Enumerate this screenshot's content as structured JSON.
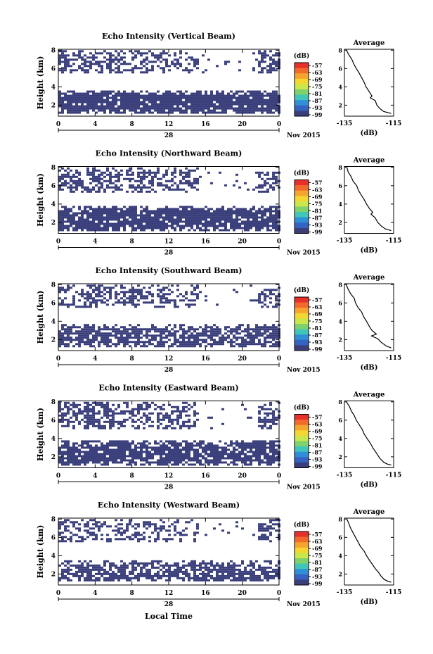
{
  "chart_data": [
    {
      "type": "heatmap",
      "title": "Echo Intensity (Vertical Beam)",
      "ylabel": "Height (km)",
      "x_ticks": [
        "0",
        "4",
        "8",
        "12",
        "16",
        "20",
        "0"
      ],
      "y_ticks": [
        "2",
        "4",
        "6",
        "8"
      ],
      "date_label": "28",
      "month_label": "Nov 2015",
      "xlim": [
        0,
        24
      ],
      "ylim": [
        0.8,
        8.1
      ],
      "colorbar": {
        "unit": "(dB)",
        "levels": [
          "-57",
          "-63",
          "-69",
          "-75",
          "-81",
          "-87",
          "-93",
          "-99"
        ]
      },
      "echo_layers": [
        {
          "from": 1.2,
          "to": 3.6,
          "density": 0.93
        },
        {
          "from": 5.5,
          "to": 8.0,
          "density": 0.55
        }
      ],
      "profile": {
        "title": "Average",
        "xlabel": "(dB)",
        "x_ticks": [
          "-135",
          "-115"
        ],
        "y_ticks": [
          "2",
          "4",
          "6",
          "8"
        ],
        "xlim": [
          -135,
          -115
        ],
        "ylim": [
          0.8,
          8.1
        ],
        "points": [
          [
            -134.2,
            8.0
          ],
          [
            -133.2,
            7.5
          ],
          [
            -132.0,
            7.0
          ],
          [
            -131.2,
            6.5
          ],
          [
            -130.2,
            6.0
          ],
          [
            -129.0,
            5.5
          ],
          [
            -128.0,
            5.0
          ],
          [
            -127.0,
            4.5
          ],
          [
            -126.2,
            4.0
          ],
          [
            -125.0,
            3.5
          ],
          [
            -123.8,
            3.0
          ],
          [
            -124.5,
            2.8
          ],
          [
            -122.5,
            2.5
          ],
          [
            -121.8,
            2.0
          ],
          [
            -120.5,
            1.6
          ],
          [
            -119.0,
            1.3
          ],
          [
            -116.0,
            1.1
          ]
        ]
      }
    },
    {
      "type": "heatmap",
      "title": "Echo Intensity (Northward Beam)",
      "ylabel": "Height (km)",
      "x_ticks": [
        "0",
        "4",
        "8",
        "12",
        "16",
        "20",
        "0"
      ],
      "y_ticks": [
        "2",
        "4",
        "6",
        "8"
      ],
      "date_label": "28",
      "month_label": "Nov 2015",
      "xlim": [
        0,
        24
      ],
      "ylim": [
        0.8,
        8.1
      ],
      "colorbar": {
        "unit": "(dB)",
        "levels": [
          "-57",
          "-63",
          "-69",
          "-75",
          "-81",
          "-87",
          "-93",
          "-99"
        ]
      },
      "echo_layers": [
        {
          "from": 1.2,
          "to": 3.8,
          "density": 0.88
        },
        {
          "from": 5.3,
          "to": 8.0,
          "density": 0.6
        }
      ],
      "profile": {
        "title": "Average",
        "xlabel": "(dB)",
        "x_ticks": [
          "-135",
          "-115"
        ],
        "y_ticks": [
          "2",
          "4",
          "6",
          "8"
        ],
        "xlim": [
          -135,
          -115
        ],
        "ylim": [
          0.8,
          8.1
        ],
        "points": [
          [
            -134.0,
            8.0
          ],
          [
            -133.5,
            7.5
          ],
          [
            -132.3,
            7.0
          ],
          [
            -131.5,
            6.5
          ],
          [
            -130.0,
            6.0
          ],
          [
            -129.3,
            5.5
          ],
          [
            -128.2,
            5.0
          ],
          [
            -127.0,
            4.5
          ],
          [
            -126.0,
            4.0
          ],
          [
            -124.8,
            3.5
          ],
          [
            -123.5,
            3.1
          ],
          [
            -124.2,
            2.9
          ],
          [
            -122.5,
            2.5
          ],
          [
            -121.5,
            2.0
          ],
          [
            -120.0,
            1.6
          ],
          [
            -118.5,
            1.3
          ],
          [
            -116.0,
            1.1
          ]
        ]
      }
    },
    {
      "type": "heatmap",
      "title": "Echo Intensity (Southward Beam)",
      "ylabel": "Height (km)",
      "x_ticks": [
        "0",
        "4",
        "8",
        "12",
        "16",
        "20",
        "0"
      ],
      "y_ticks": [
        "2",
        "4",
        "6",
        "8"
      ],
      "date_label": "28",
      "month_label": "Nov 2015",
      "xlim": [
        0,
        24
      ],
      "ylim": [
        0.8,
        8.1
      ],
      "colorbar": {
        "unit": "(dB)",
        "levels": [
          "-57",
          "-63",
          "-69",
          "-75",
          "-81",
          "-87",
          "-93",
          "-99"
        ]
      },
      "echo_layers": [
        {
          "from": 1.2,
          "to": 3.7,
          "density": 0.75
        },
        {
          "from": 5.5,
          "to": 8.0,
          "density": 0.5
        }
      ],
      "profile": {
        "title": "Average",
        "xlabel": "(dB)",
        "x_ticks": [
          "-135",
          "-115"
        ],
        "y_ticks": [
          "2",
          "4",
          "6",
          "8"
        ],
        "xlim": [
          -135,
          -115
        ],
        "ylim": [
          0.8,
          8.1
        ],
        "points": [
          [
            -134.3,
            8.0
          ],
          [
            -133.5,
            7.5
          ],
          [
            -132.5,
            7.0
          ],
          [
            -131.0,
            6.5
          ],
          [
            -130.5,
            6.0
          ],
          [
            -129.5,
            5.5
          ],
          [
            -128.0,
            5.0
          ],
          [
            -127.2,
            4.5
          ],
          [
            -126.0,
            4.0
          ],
          [
            -125.0,
            3.5
          ],
          [
            -123.8,
            3.0
          ],
          [
            -122.0,
            2.6
          ],
          [
            -124.0,
            2.4
          ],
          [
            -121.5,
            2.1
          ],
          [
            -120.0,
            1.7
          ],
          [
            -118.0,
            1.3
          ],
          [
            -116.0,
            1.1
          ]
        ]
      }
    },
    {
      "type": "heatmap",
      "title": "Echo Intensity (Eastward Beam)",
      "ylabel": "Height (km)",
      "x_ticks": [
        "0",
        "4",
        "8",
        "12",
        "16",
        "20",
        "0"
      ],
      "y_ticks": [
        "2",
        "4",
        "6",
        "8"
      ],
      "date_label": "28",
      "month_label": "Nov 2015",
      "xlim": [
        0,
        24
      ],
      "ylim": [
        0.8,
        8.1
      ],
      "colorbar": {
        "unit": "(dB)",
        "levels": [
          "-57",
          "-63",
          "-69",
          "-75",
          "-81",
          "-87",
          "-93",
          "-99"
        ]
      },
      "echo_layers": [
        {
          "from": 1.2,
          "to": 3.8,
          "density": 0.85
        },
        {
          "from": 5.2,
          "to": 8.0,
          "density": 0.55
        }
      ],
      "profile": {
        "title": "Average",
        "xlabel": "(dB)",
        "x_ticks": [
          "-135",
          "-115"
        ],
        "y_ticks": [
          "2",
          "4",
          "6",
          "8"
        ],
        "xlim": [
          -135,
          -115
        ],
        "ylim": [
          0.8,
          8.1
        ],
        "points": [
          [
            -134.2,
            8.0
          ],
          [
            -133.0,
            7.5
          ],
          [
            -132.2,
            7.0
          ],
          [
            -131.0,
            6.5
          ],
          [
            -130.2,
            6.0
          ],
          [
            -129.0,
            5.5
          ],
          [
            -127.8,
            5.0
          ],
          [
            -127.0,
            4.5
          ],
          [
            -125.8,
            4.0
          ],
          [
            -124.5,
            3.5
          ],
          [
            -123.5,
            3.0
          ],
          [
            -122.5,
            2.6
          ],
          [
            -121.5,
            2.2
          ],
          [
            -120.5,
            1.8
          ],
          [
            -119.0,
            1.4
          ],
          [
            -117.5,
            1.2
          ],
          [
            -116.0,
            1.1
          ]
        ]
      }
    },
    {
      "type": "heatmap",
      "title": "Echo Intensity (Westward Beam)",
      "ylabel": "Height (km)",
      "x_ticks": [
        "0",
        "4",
        "8",
        "12",
        "16",
        "20",
        "0"
      ],
      "y_ticks": [
        "2",
        "4",
        "6",
        "8"
      ],
      "date_label": "28",
      "month_label": "Nov 2015",
      "xlim": [
        0,
        24
      ],
      "ylim": [
        0.8,
        8.1
      ],
      "colorbar": {
        "unit": "(dB)",
        "levels": [
          "-57",
          "-63",
          "-69",
          "-75",
          "-81",
          "-87",
          "-93",
          "-99"
        ]
      },
      "echo_layers": [
        {
          "from": 1.2,
          "to": 3.5,
          "density": 0.72
        },
        {
          "from": 5.5,
          "to": 8.0,
          "density": 0.45
        }
      ],
      "profile": {
        "title": "Average",
        "xlabel": "(dB)",
        "x_ticks": [
          "-135",
          "-115"
        ],
        "y_ticks": [
          "2",
          "4",
          "6",
          "8"
        ],
        "xlim": [
          -135,
          -115
        ],
        "ylim": [
          0.8,
          8.1
        ],
        "points": [
          [
            -134.0,
            8.0
          ],
          [
            -133.2,
            7.5
          ],
          [
            -132.5,
            7.0
          ],
          [
            -131.5,
            6.5
          ],
          [
            -130.5,
            6.0
          ],
          [
            -129.5,
            5.5
          ],
          [
            -128.5,
            5.0
          ],
          [
            -127.0,
            4.5
          ],
          [
            -126.0,
            4.0
          ],
          [
            -124.8,
            3.5
          ],
          [
            -123.5,
            3.0
          ],
          [
            -122.5,
            2.6
          ],
          [
            -121.2,
            2.2
          ],
          [
            -120.2,
            1.8
          ],
          [
            -118.8,
            1.4
          ],
          [
            -117.2,
            1.2
          ],
          [
            -116.0,
            1.1
          ]
        ]
      }
    }
  ],
  "footer": {
    "xlabel": "Local Time"
  },
  "colors": {
    "echo": "#3a3f7c",
    "colorbar": [
      "#e8302a",
      "#f26a2b",
      "#f5a42d",
      "#f3d632",
      "#c9e64a",
      "#7fd16d",
      "#3fc6b9",
      "#2f8fd7",
      "#3563c4",
      "#3a3f7c"
    ]
  }
}
